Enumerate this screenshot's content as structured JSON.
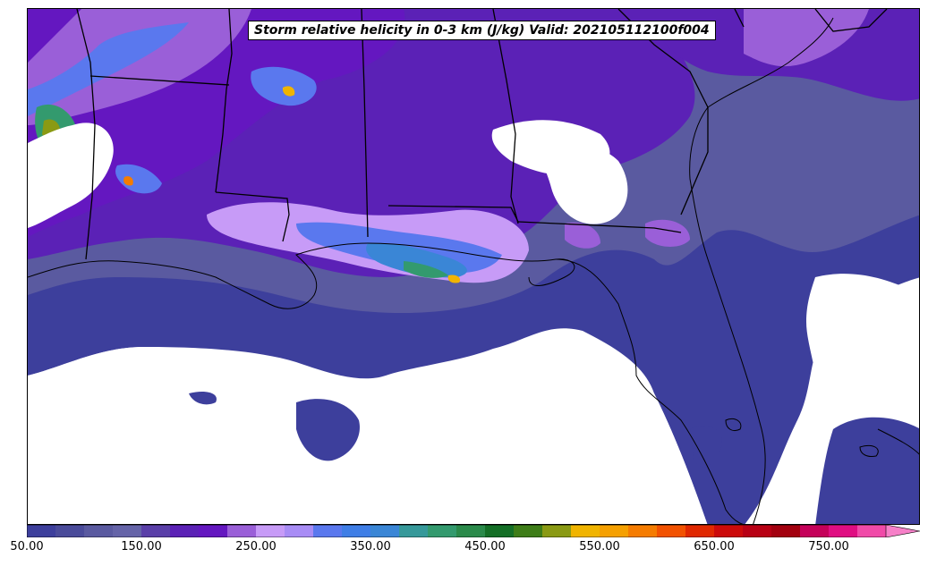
{
  "title": "Storm relative helicity in 0-3 km (J/kg) Valid: 202105112100f004",
  "colorbar": {
    "min": 50,
    "max": 825,
    "step": 25,
    "extend": "max",
    "tick_labels": [
      "50.00",
      "150.00",
      "250.00",
      "350.00",
      "450.00",
      "550.00",
      "650.00",
      "750.00"
    ],
    "tick_values": [
      50,
      150,
      250,
      350,
      450,
      550,
      650,
      750
    ],
    "colors": [
      "#3d3f9c",
      "#4a4b9a",
      "#5a5aa0",
      "#6564a8",
      "#5a3fa8",
      "#5b21b6",
      "#6417c0",
      "#9a5fd8",
      "#c79bf7",
      "#a88cf5",
      "#5a78ee",
      "#3f7ee6",
      "#3a86d6",
      "#36999a",
      "#339a6e",
      "#2a8a4a",
      "#146f26",
      "#3e7d18",
      "#8a9a14",
      "#f0b400",
      "#f5a000",
      "#f57c00",
      "#f25200",
      "#e02800",
      "#cc0a0a",
      "#b80014",
      "#a3000f",
      "#c5005a",
      "#e00d82",
      "#f04aa8",
      "#f680c8"
    ]
  },
  "map": {
    "region": "Southeastern United States and Gulf of Mexico",
    "field": "storm-relative helicity 0-3 km"
  }
}
